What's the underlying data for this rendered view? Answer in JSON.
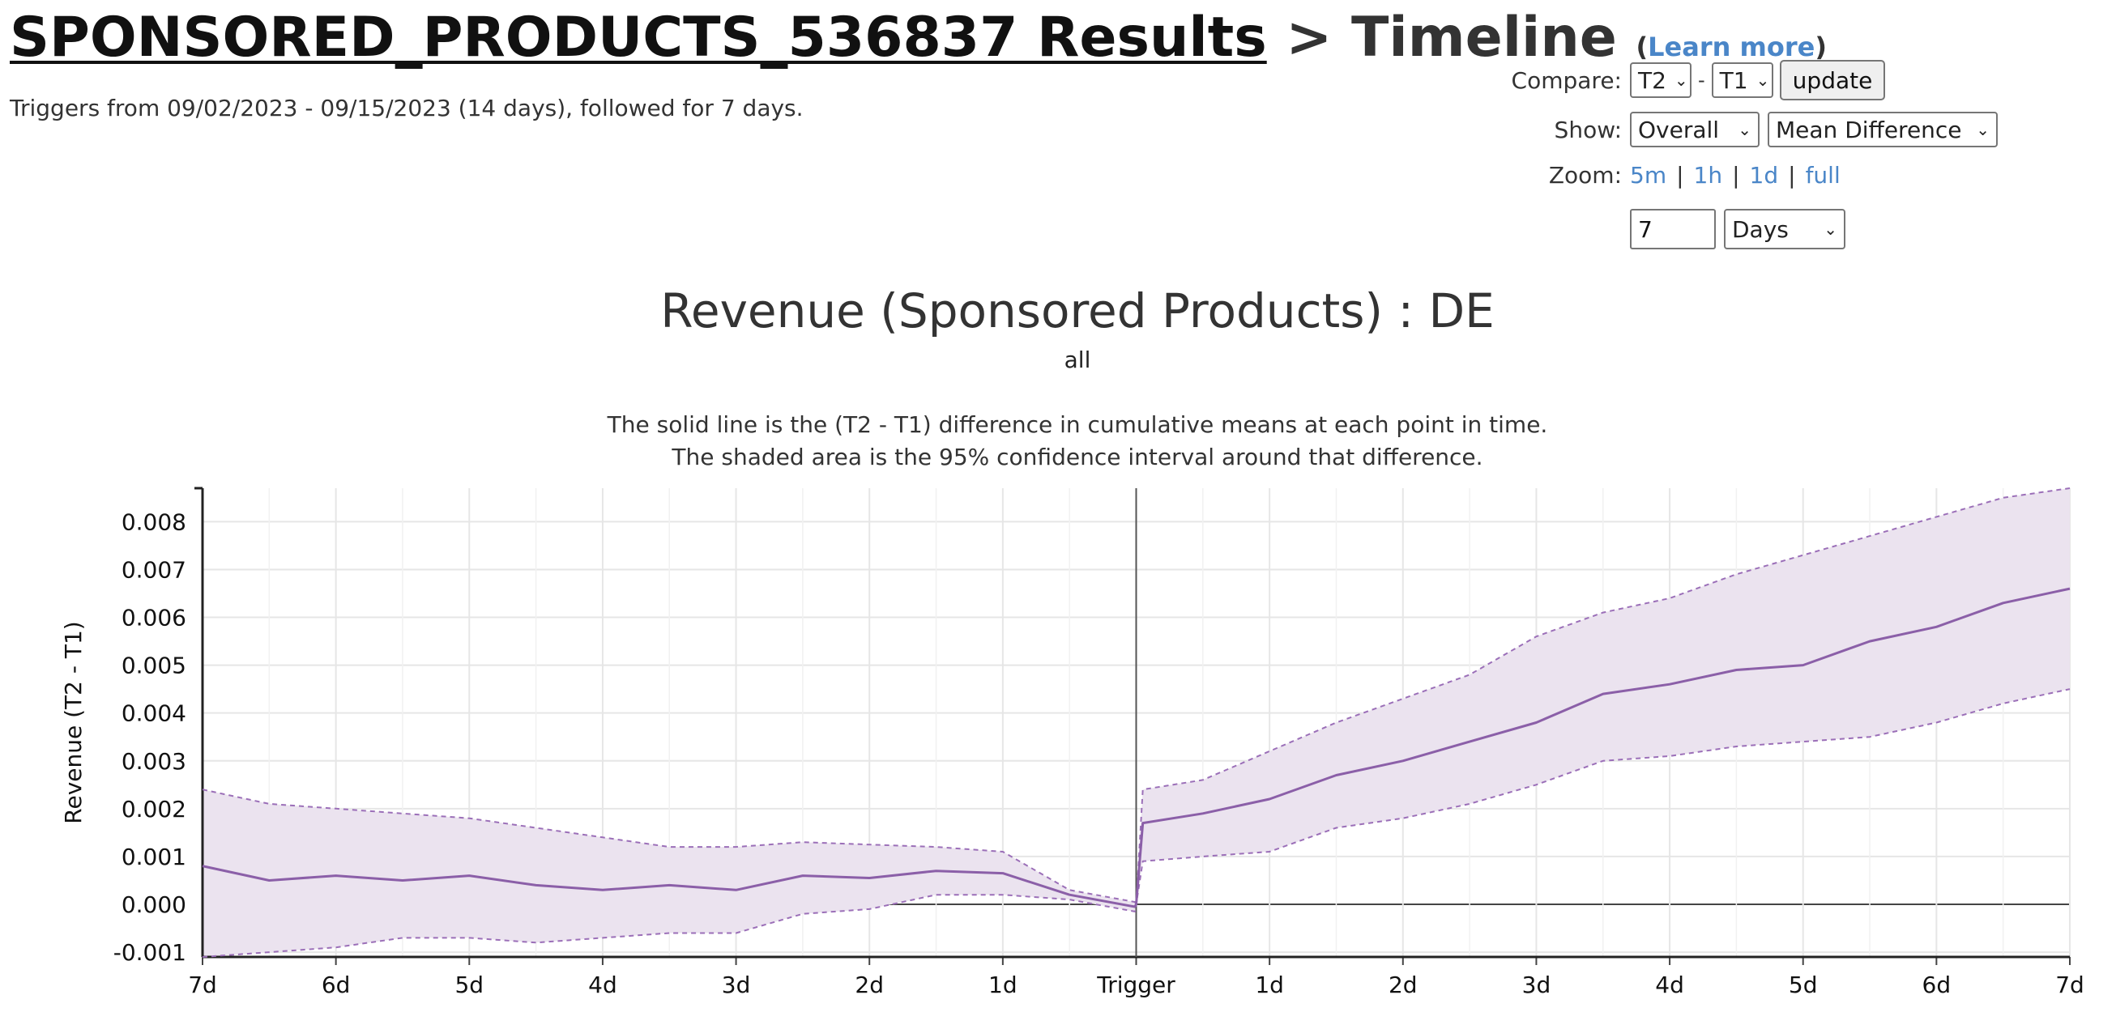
{
  "header": {
    "title_link": "SPONSORED_PRODUCTS_536837 Results",
    "title_rest": " > Timeline ",
    "learn_open": "(",
    "learn_more": "Learn more",
    "learn_close": ")",
    "subtitle": "Triggers from 09/02/2023 - 09/15/2023 (14 days), followed for 7 days."
  },
  "controls": {
    "compare_label": "Compare:",
    "compare_a": "T2",
    "compare_dash": "-",
    "compare_b": "T1",
    "update_label": "update",
    "show_label": "Show:",
    "show_scope": "Overall",
    "show_metric": "Mean Difference",
    "zoom_label": "Zoom:",
    "zoom_5m": "5m",
    "zoom_1h": "1h",
    "zoom_1d": "1d",
    "zoom_full": "full",
    "zoom_sep": "|",
    "range_value": "7",
    "range_unit": "Days"
  },
  "chart_data": {
    "type": "line",
    "title": "Revenue (Sponsored Products) : DE",
    "subtitle": "all",
    "description": [
      "The solid line is the (T2 - T1) difference in cumulative means at each point in time.",
      "The shaded area is the 95% confidence interval around that difference."
    ],
    "xlabel": "",
    "ylabel": "Revenue (T2 - T1)",
    "x_ticks": [
      "7d",
      "6d",
      "5d",
      "4d",
      "3d",
      "2d",
      "1d",
      "Trigger",
      "1d",
      "2d",
      "3d",
      "4d",
      "5d",
      "6d",
      "7d"
    ],
    "xlim": [
      -7,
      7
    ],
    "ylim": [
      -0.0011,
      0.0087
    ],
    "y_ticks": [
      {
        "value": -0.001,
        "label": "-0.001"
      },
      {
        "value": 0.0,
        "label": "0.000"
      },
      {
        "value": 0.001,
        "label": "0.001"
      },
      {
        "value": 0.002,
        "label": "0.002"
      },
      {
        "value": 0.003,
        "label": "0.003"
      },
      {
        "value": 0.004,
        "label": "0.004"
      },
      {
        "value": 0.005,
        "label": "0.005"
      },
      {
        "value": 0.006,
        "label": "0.006"
      },
      {
        "value": 0.007,
        "label": "0.007"
      },
      {
        "value": 0.008,
        "label": "0.008"
      }
    ],
    "x": [
      -7,
      -6.5,
      -6,
      -5.5,
      -5,
      -4.5,
      -4,
      -3.5,
      -3,
      -2.5,
      -2,
      -1.5,
      -1,
      -0.5,
      -0.01,
      0,
      0.05,
      0.5,
      1,
      1.5,
      2,
      2.5,
      3,
      3.5,
      4,
      4.5,
      5,
      5.5,
      6,
      6.5,
      7
    ],
    "series": [
      {
        "name": "mean difference",
        "values": [
          0.0008,
          0.0005,
          0.0006,
          0.0005,
          0.0006,
          0.0004,
          0.0003,
          0.0004,
          0.0003,
          0.0006,
          0.00055,
          0.0007,
          0.00065,
          0.0002,
          -5e-05,
          0.0,
          0.0017,
          0.0019,
          0.0022,
          0.0027,
          0.003,
          0.0034,
          0.0038,
          0.0044,
          0.0046,
          0.0049,
          0.005,
          0.0055,
          0.0058,
          0.0063,
          0.0066
        ]
      },
      {
        "name": "upper 95% CI",
        "values": [
          0.0024,
          0.0021,
          0.002,
          0.0019,
          0.0018,
          0.0016,
          0.0014,
          0.0012,
          0.0012,
          0.0013,
          0.00125,
          0.0012,
          0.0011,
          0.0003,
          5e-05,
          0.0,
          0.0024,
          0.0026,
          0.0032,
          0.0038,
          0.0043,
          0.0048,
          0.0056,
          0.0061,
          0.0064,
          0.0069,
          0.0073,
          0.0077,
          0.0081,
          0.0085,
          0.0087
        ]
      },
      {
        "name": "lower 95% CI",
        "values": [
          -0.0011,
          -0.001,
          -0.0009,
          -0.0007,
          -0.0007,
          -0.0008,
          -0.0007,
          -0.0006,
          -0.0006,
          -0.0002,
          -0.0001,
          0.0002,
          0.0002,
          0.0001,
          -0.00015,
          0.0,
          0.0009,
          0.001,
          0.0011,
          0.0016,
          0.0018,
          0.0021,
          0.0025,
          0.003,
          0.0031,
          0.0033,
          0.0034,
          0.0035,
          0.0038,
          0.0042,
          0.0045
        ]
      }
    ],
    "grid": true
  },
  "colors": {
    "line": "#8b5fa8",
    "band": "#ebe3ef",
    "band_edge": "#9b6fb8",
    "grid": "#e6e6e6",
    "axis": "#444444",
    "link": "#4a86c8"
  }
}
